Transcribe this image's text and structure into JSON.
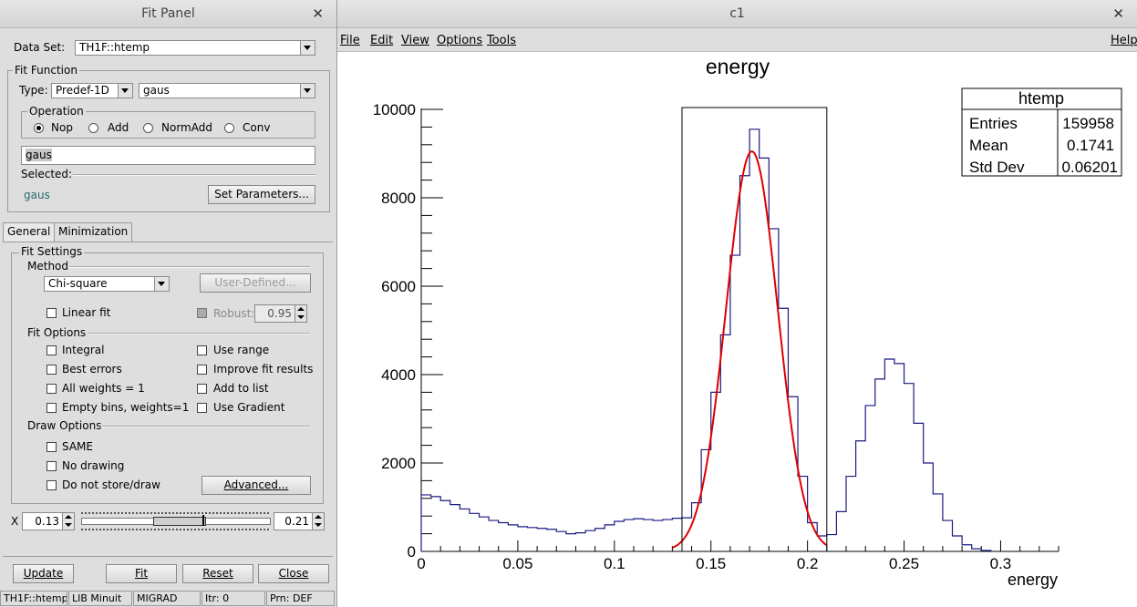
{
  "fit_panel": {
    "title": "Fit Panel",
    "data_set_label": "Data Set:",
    "data_set_value": "TH1F::htemp",
    "fit_function_title": "Fit Function",
    "type_label": "Type:",
    "type_value": "Predef-1D",
    "function_value": "gaus",
    "operation_title": "Operation",
    "operations": [
      "Nop",
      "Add",
      "NormAdd",
      "Conv"
    ],
    "operation_selected": "Nop",
    "formula_value": "gaus",
    "selected_label": "Selected:",
    "selected_value": "gaus",
    "set_parameters_label": "Set Parameters...",
    "tabs": [
      "General",
      "Minimization"
    ],
    "fit_settings_title": "Fit Settings",
    "method_title": "Method",
    "method_value": "Chi-square",
    "user_defined_label": "User-Defined...",
    "linear_fit_label": "Linear fit",
    "robust_label": "Robust:",
    "robust_value": "0.95",
    "fit_options_title": "Fit Options",
    "fit_options_left": [
      "Integral",
      "Best errors",
      "All weights = 1",
      "Empty bins, weights=1"
    ],
    "fit_options_right": [
      "Use range",
      "Improve fit results",
      "Add to list",
      "Use Gradient"
    ],
    "draw_options_title": "Draw Options",
    "draw_options": [
      "SAME",
      "No drawing",
      "Do not store/draw"
    ],
    "advanced_label": "Advanced...",
    "range_axis_label": "X",
    "range_min": "0.13",
    "range_max": "0.21",
    "buttons": {
      "update": "Update",
      "fit": "Fit",
      "reset": "Reset",
      "close": "Close"
    },
    "status": [
      "TH1F::htemp",
      "LIB Minuit",
      "MIGRAD",
      "Itr: 0",
      "Prn: DEF"
    ]
  },
  "canvas": {
    "title": "c1",
    "menus": [
      "File",
      "Edit",
      "View",
      "Options",
      "Tools"
    ],
    "help_menu": "Help"
  },
  "stats_box": {
    "title": "htemp",
    "rows": [
      {
        "label": "Entries",
        "value": "159958"
      },
      {
        "label": "Mean",
        "value": "0.1741"
      },
      {
        "label": "Std Dev",
        "value": "0.06201"
      }
    ]
  },
  "colors": {
    "histogram": "#1a1a80",
    "fit": "#e00000"
  },
  "chart_data": {
    "type": "histogram",
    "title": "energy",
    "xlabel": "energy",
    "ylabel": "",
    "xlim": [
      0,
      0.33
    ],
    "ylim": [
      0,
      10000
    ],
    "x_ticks": [
      0,
      0.05,
      0.1,
      0.15,
      0.2,
      0.25,
      0.3
    ],
    "x_tick_labels": [
      "0",
      "0.05",
      "0.1",
      "0.15",
      "0.2",
      "0.25",
      "0.3"
    ],
    "y_ticks": [
      0,
      2000,
      4000,
      6000,
      8000,
      10000
    ],
    "y_tick_labels": [
      "0",
      "2000",
      "4000",
      "6000",
      "8000",
      "10000"
    ],
    "bin_width": 0.005,
    "bins": [
      {
        "x": 0.0,
        "y": 1280
      },
      {
        "x": 0.005,
        "y": 1240
      },
      {
        "x": 0.01,
        "y": 1150
      },
      {
        "x": 0.015,
        "y": 1060
      },
      {
        "x": 0.02,
        "y": 960
      },
      {
        "x": 0.025,
        "y": 860
      },
      {
        "x": 0.03,
        "y": 780
      },
      {
        "x": 0.035,
        "y": 700
      },
      {
        "x": 0.04,
        "y": 650
      },
      {
        "x": 0.045,
        "y": 600
      },
      {
        "x": 0.05,
        "y": 560
      },
      {
        "x": 0.055,
        "y": 540
      },
      {
        "x": 0.06,
        "y": 520
      },
      {
        "x": 0.065,
        "y": 500
      },
      {
        "x": 0.07,
        "y": 450
      },
      {
        "x": 0.075,
        "y": 400
      },
      {
        "x": 0.08,
        "y": 420
      },
      {
        "x": 0.085,
        "y": 470
      },
      {
        "x": 0.09,
        "y": 520
      },
      {
        "x": 0.095,
        "y": 600
      },
      {
        "x": 0.1,
        "y": 680
      },
      {
        "x": 0.105,
        "y": 720
      },
      {
        "x": 0.11,
        "y": 740
      },
      {
        "x": 0.115,
        "y": 720
      },
      {
        "x": 0.12,
        "y": 700
      },
      {
        "x": 0.125,
        "y": 720
      },
      {
        "x": 0.13,
        "y": 750
      },
      {
        "x": 0.135,
        "y": 760
      },
      {
        "x": 0.14,
        "y": 1100
      },
      {
        "x": 0.145,
        "y": 2300
      },
      {
        "x": 0.15,
        "y": 3600
      },
      {
        "x": 0.155,
        "y": 4900
      },
      {
        "x": 0.16,
        "y": 6700
      },
      {
        "x": 0.165,
        "y": 8500
      },
      {
        "x": 0.17,
        "y": 9550
      },
      {
        "x": 0.175,
        "y": 8900
      },
      {
        "x": 0.18,
        "y": 7300
      },
      {
        "x": 0.185,
        "y": 5500
      },
      {
        "x": 0.19,
        "y": 3500
      },
      {
        "x": 0.195,
        "y": 1700
      },
      {
        "x": 0.2,
        "y": 650
      },
      {
        "x": 0.205,
        "y": 350
      },
      {
        "x": 0.21,
        "y": 380
      },
      {
        "x": 0.215,
        "y": 900
      },
      {
        "x": 0.22,
        "y": 1700
      },
      {
        "x": 0.225,
        "y": 2500
      },
      {
        "x": 0.23,
        "y": 3300
      },
      {
        "x": 0.235,
        "y": 3900
      },
      {
        "x": 0.24,
        "y": 4350
      },
      {
        "x": 0.245,
        "y": 4250
      },
      {
        "x": 0.25,
        "y": 3800
      },
      {
        "x": 0.255,
        "y": 2900
      },
      {
        "x": 0.26,
        "y": 2000
      },
      {
        "x": 0.265,
        "y": 1300
      },
      {
        "x": 0.27,
        "y": 700
      },
      {
        "x": 0.275,
        "y": 350
      },
      {
        "x": 0.28,
        "y": 150
      },
      {
        "x": 0.285,
        "y": 60
      },
      {
        "x": 0.29,
        "y": 20
      }
    ],
    "fit": {
      "function": "gaus",
      "constant": 9050,
      "mean": 0.1712,
      "sigma": 0.0134,
      "range": [
        0.13,
        0.21
      ]
    },
    "range_box": [
      0.135,
      0.21
    ]
  }
}
